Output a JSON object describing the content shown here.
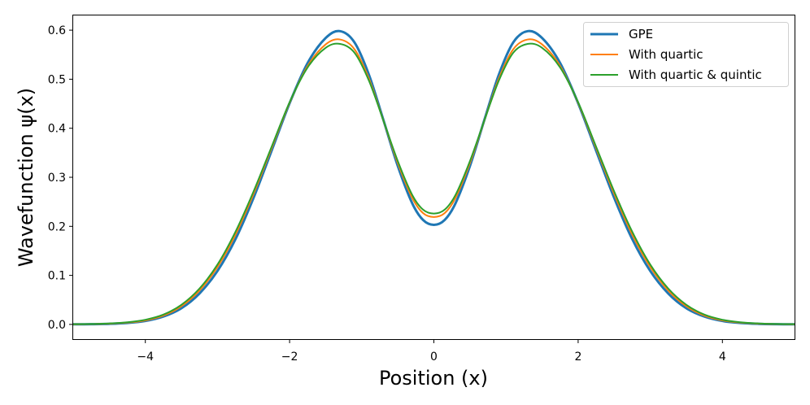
{
  "chart_data": {
    "type": "line",
    "title": "",
    "xlabel": "Position (x)",
    "ylabel": "Wavefunction ψ(x)",
    "xlim": [
      -5,
      5
    ],
    "ylim": [
      -0.03,
      0.63
    ],
    "xticks": [
      -4,
      -2,
      0,
      2,
      4
    ],
    "xtick_labels": [
      "−4",
      "−2",
      "0",
      "2",
      "4"
    ],
    "yticks": [
      0.0,
      0.1,
      0.2,
      0.3,
      0.4,
      0.5,
      0.6
    ],
    "ytick_labels": [
      "0.0",
      "0.1",
      "0.2",
      "0.3",
      "0.4",
      "0.5",
      "0.6"
    ],
    "grid": false,
    "legend_position": "top-right",
    "x": [
      -5,
      -4.75,
      -4.5,
      -4.25,
      -4,
      -3.75,
      -3.5,
      -3.25,
      -3,
      -2.75,
      -2.5,
      -2.25,
      -2,
      -1.75,
      -1.5,
      -1.3,
      -1.1,
      -0.9,
      -0.7,
      -0.5,
      -0.3,
      -0.15,
      0,
      0.15,
      0.3,
      0.5,
      0.7,
      0.9,
      1.1,
      1.3,
      1.5,
      1.75,
      2,
      2.25,
      2.5,
      2.75,
      3,
      3.25,
      3.5,
      3.75,
      4,
      4.25,
      4.5,
      4.75,
      5
    ],
    "series": [
      {
        "name": "GPE",
        "color": "#1f77b4",
        "values": [
          0.0002,
          0.0005,
          0.0012,
          0.003,
          0.007,
          0.016,
          0.033,
          0.063,
          0.109,
          0.174,
          0.258,
          0.354,
          0.451,
          0.533,
          0.584,
          0.598,
          0.575,
          0.509,
          0.417,
          0.323,
          0.247,
          0.213,
          0.203,
          0.213,
          0.247,
          0.323,
          0.417,
          0.509,
          0.575,
          0.598,
          0.584,
          0.533,
          0.451,
          0.354,
          0.258,
          0.174,
          0.109,
          0.063,
          0.033,
          0.016,
          0.007,
          0.003,
          0.0012,
          0.0005,
          0.0002
        ]
      },
      {
        "name": "With quartic",
        "color": "#ff7f0e",
        "values": [
          0.0003,
          0.0007,
          0.0016,
          0.0037,
          0.0082,
          0.018,
          0.037,
          0.069,
          0.117,
          0.183,
          0.266,
          0.359,
          0.452,
          0.527,
          0.571,
          0.581,
          0.561,
          0.501,
          0.416,
          0.329,
          0.258,
          0.227,
          0.219,
          0.227,
          0.258,
          0.329,
          0.416,
          0.501,
          0.561,
          0.581,
          0.571,
          0.527,
          0.452,
          0.359,
          0.266,
          0.183,
          0.117,
          0.069,
          0.037,
          0.018,
          0.0082,
          0.0037,
          0.0016,
          0.0007,
          0.0003
        ]
      },
      {
        "name": "With quartic & quintic",
        "color": "#2ca02c",
        "values": [
          0.0004,
          0.0009,
          0.002,
          0.0044,
          0.0095,
          0.02,
          0.04,
          0.073,
          0.122,
          0.189,
          0.271,
          0.362,
          0.453,
          0.524,
          0.564,
          0.572,
          0.554,
          0.497,
          0.416,
          0.333,
          0.264,
          0.234,
          0.226,
          0.234,
          0.264,
          0.333,
          0.416,
          0.497,
          0.554,
          0.572,
          0.564,
          0.524,
          0.453,
          0.362,
          0.271,
          0.189,
          0.122,
          0.073,
          0.04,
          0.02,
          0.0095,
          0.0044,
          0.002,
          0.0009,
          0.0004
        ]
      }
    ]
  }
}
